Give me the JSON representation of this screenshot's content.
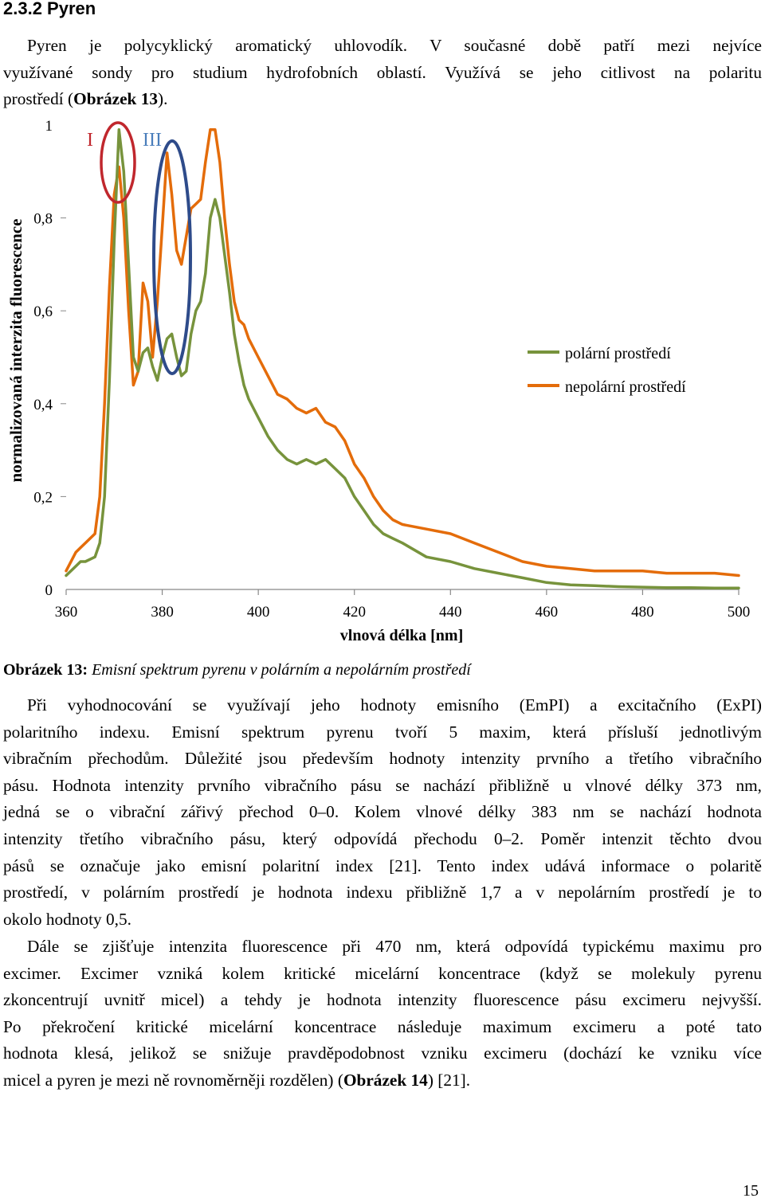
{
  "heading": "2.3.2 Pyren",
  "intro": {
    "lines": [
      "Pyren je polycyklický aromatický uhlovodík. V současné době patří mezi nejvíce",
      "využívané sondy pro studium hydrofobních oblastí. Využívá se jeho citlivost na polaritu"
    ],
    "last_prefix": "prostředí (",
    "last_bold": "Obrázek 13",
    "last_suffix": ")."
  },
  "chart_data": {
    "type": "line",
    "xlabel": "vlnová délka [nm]",
    "ylabel": "normalizovaná interzita fluorescence",
    "xlim": [
      360,
      500
    ],
    "ylim": [
      0,
      1
    ],
    "x_ticks": [
      "360",
      "380",
      "400",
      "420",
      "440",
      "460",
      "480",
      "500"
    ],
    "y_ticks": [
      "0",
      "0,2",
      "0,4",
      "0,6",
      "0,8",
      "1"
    ],
    "annotations": [
      "I",
      "III"
    ],
    "legend_position": "right",
    "series": [
      {
        "name": "polární prostředí",
        "color": "#77933c",
        "x": [
          360,
          362,
          363,
          364,
          366,
          367,
          368,
          369,
          370,
          371,
          372,
          373,
          374,
          375,
          376,
          377,
          378,
          379,
          380,
          381,
          382,
          383,
          384,
          385,
          386,
          387,
          388,
          389,
          390,
          391,
          392,
          393,
          394,
          395,
          396,
          397,
          398,
          400,
          402,
          404,
          406,
          408,
          410,
          412,
          414,
          416,
          418,
          420,
          422,
          424,
          426,
          428,
          430,
          435,
          440,
          445,
          450,
          455,
          460,
          465,
          470,
          475,
          480,
          485,
          490,
          495,
          500
        ],
        "y": [
          0.03,
          0.05,
          0.06,
          0.06,
          0.07,
          0.1,
          0.2,
          0.45,
          0.75,
          0.99,
          0.9,
          0.7,
          0.5,
          0.47,
          0.51,
          0.52,
          0.48,
          0.45,
          0.5,
          0.54,
          0.55,
          0.5,
          0.46,
          0.47,
          0.55,
          0.6,
          0.62,
          0.68,
          0.8,
          0.84,
          0.8,
          0.72,
          0.64,
          0.55,
          0.49,
          0.44,
          0.41,
          0.37,
          0.33,
          0.3,
          0.28,
          0.27,
          0.28,
          0.27,
          0.28,
          0.26,
          0.24,
          0.2,
          0.17,
          0.14,
          0.12,
          0.11,
          0.1,
          0.07,
          0.06,
          0.045,
          0.035,
          0.025,
          0.015,
          0.01,
          0.008,
          0.006,
          0.005,
          0.004,
          0.004,
          0.003,
          0.003
        ]
      },
      {
        "name": "nepolární prostředí",
        "color": "#e46c0a",
        "x": [
          360,
          362,
          363,
          364,
          366,
          367,
          368,
          369,
          370,
          371,
          372,
          373,
          374,
          375,
          376,
          377,
          378,
          379,
          380,
          381,
          382,
          383,
          384,
          385,
          386,
          387,
          388,
          389,
          390,
          391,
          392,
          393,
          394,
          395,
          396,
          397,
          398,
          400,
          402,
          404,
          406,
          408,
          410,
          412,
          414,
          416,
          418,
          420,
          422,
          424,
          426,
          428,
          430,
          435,
          440,
          445,
          450,
          455,
          460,
          465,
          470,
          475,
          480,
          485,
          490,
          495,
          500
        ],
        "y": [
          0.04,
          0.08,
          0.09,
          0.1,
          0.12,
          0.2,
          0.4,
          0.65,
          0.85,
          0.91,
          0.8,
          0.6,
          0.44,
          0.47,
          0.66,
          0.62,
          0.5,
          0.62,
          0.78,
          0.94,
          0.85,
          0.73,
          0.7,
          0.76,
          0.82,
          0.83,
          0.84,
          0.92,
          0.99,
          0.99,
          0.92,
          0.8,
          0.7,
          0.62,
          0.58,
          0.57,
          0.54,
          0.5,
          0.46,
          0.42,
          0.41,
          0.39,
          0.38,
          0.39,
          0.36,
          0.35,
          0.32,
          0.27,
          0.24,
          0.2,
          0.17,
          0.15,
          0.14,
          0.13,
          0.12,
          0.1,
          0.08,
          0.06,
          0.05,
          0.045,
          0.04,
          0.04,
          0.04,
          0.035,
          0.035,
          0.035,
          0.03
        ]
      }
    ]
  },
  "caption": {
    "label": "Obrázek 13:",
    "text": " Emisní spektrum  pyrenu v polárním a nepolárním prostředí"
  },
  "para2": {
    "lines": [
      "Při vyhodnocování se využívají jeho hodnoty emisního (EmPI) a excitačního (ExPI)",
      "polaritního indexu. Emisní spektrum pyrenu tvoří 5 maxim, která přísluší jednotlivým",
      "vibračním přechodům. Důležité jsou především hodnoty intenzity prvního a třetího vibračního",
      "pásu. Hodnota intenzity prvního vibračního pásu se nachází přibližně u vlnové délky 373 nm,",
      "jedná se o vibrační zářivý přechod 0–0. Kolem vlnové délky 383 nm se nachází hodnota",
      "intenzity třetího vibračního pásu, který odpovídá přechodu 0–2. Poměr intenzit těchto dvou",
      "pásů se označuje jako emisní polaritní index [21]. Tento index udává informace o polaritě",
      "prostředí, v polárním prostředí je hodnota indexu přibližně 1,7 a v nepolárním prostředí je to",
      "okolo hodnoty 0,5."
    ]
  },
  "para3": {
    "lines": [
      "Dále se zjišťuje intenzita fluorescence při 470 nm, která odpovídá typickému maximu pro",
      "excimer. Excimer vzniká kolem kritické micelární koncentrace (když se molekuly pyrenu",
      "zkoncentrují uvnitř micel) a tehdy je hodnota intenzity fluorescence pásu excimeru nejvyšší.",
      "Po překročení kritické micelární koncentrace následuje maximum excimeru a poté tato",
      "hodnota klesá, jelikož se snižuje pravděpodobnost vzniku excimeru (dochází ke vzniku více"
    ],
    "last_prefix": "micel a pyren je mezi ně rovnoměrněji rozdělen) (",
    "last_bold": "Obrázek 14",
    "last_suffix": ") [21]."
  },
  "page_number": "15"
}
